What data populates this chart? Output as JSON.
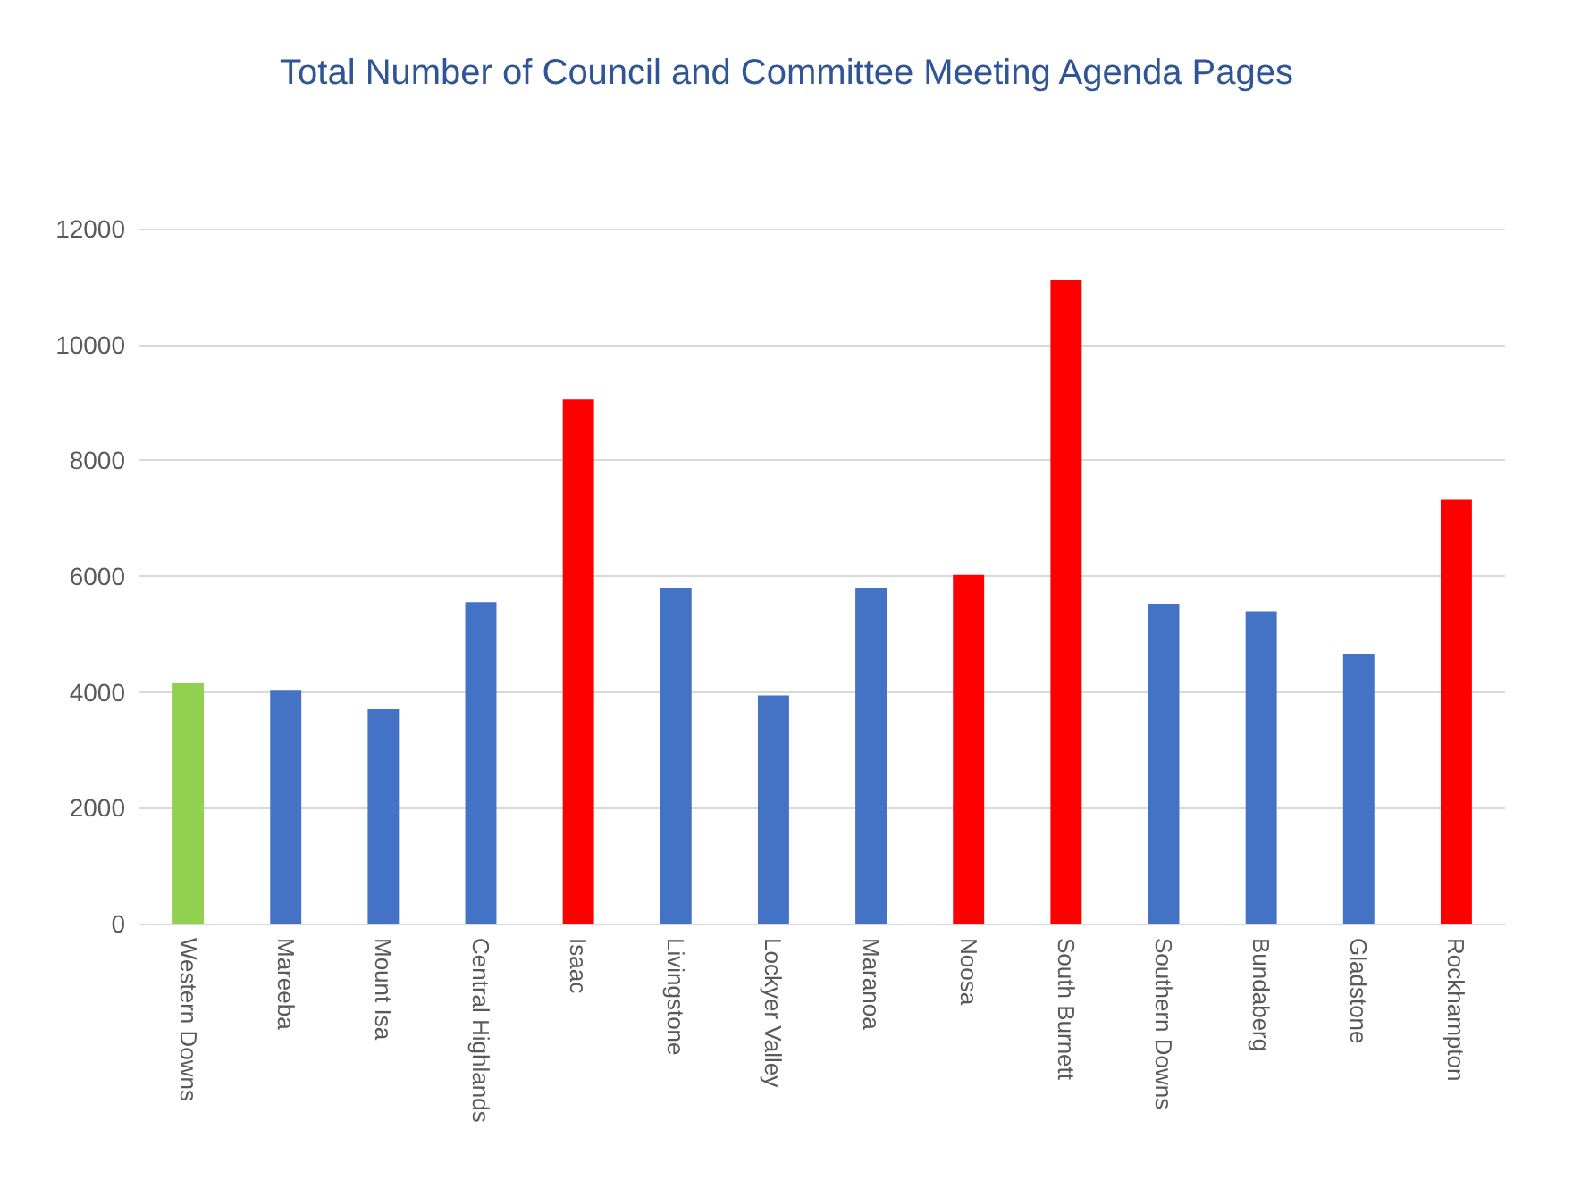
{
  "chart_data": {
    "type": "bar",
    "title": "Total Number of Council and Committee Meeting Agenda Pages",
    "categories": [
      "Western Downs",
      "Mareeba",
      "Mount Isa",
      "Central Highlands",
      "Isaac",
      "Livingstone",
      "Lockyer Valley",
      "Maranoa",
      "Noosa",
      "South Burnett",
      "Southern Downs",
      "Bundaberg",
      "Gladstone",
      "Rockhampton"
    ],
    "values": [
      4150,
      4020,
      3700,
      5550,
      9050,
      5800,
      3940,
      5800,
      6020,
      11120,
      5520,
      5390,
      4660,
      7320
    ],
    "colors": [
      "#92d050",
      "#4472c4",
      "#4472c4",
      "#4472c4",
      "#ff0000",
      "#4472c4",
      "#4472c4",
      "#4472c4",
      "#ff0000",
      "#ff0000",
      "#4472c4",
      "#4472c4",
      "#4472c4",
      "#ff0000"
    ],
    "ylim": [
      0,
      12000
    ],
    "yticks": [
      0,
      2000,
      4000,
      6000,
      8000,
      10000,
      12000
    ],
    "grid": "y"
  }
}
